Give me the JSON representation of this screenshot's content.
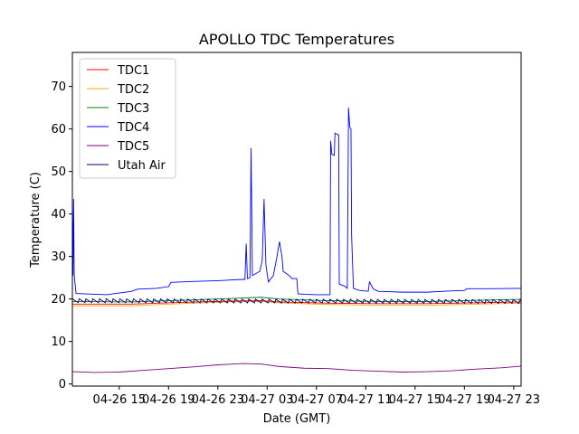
{
  "chart_data": {
    "type": "line",
    "title": "APOLLO TDC Temperatures",
    "xlabel": "Date (GMT)",
    "ylabel": "Temperature (C)",
    "xlim": [
      11.2,
      47.6
    ],
    "ylim": [
      -0.5,
      78
    ],
    "x_unit_note": "hours since 04-26 00:00 GMT",
    "x_ticks": [
      {
        "x": 15,
        "label": "04-26 15"
      },
      {
        "x": 19,
        "label": "04-26 19"
      },
      {
        "x": 23,
        "label": "04-26 23"
      },
      {
        "x": 27,
        "label": "04-27 03"
      },
      {
        "x": 31,
        "label": "04-27 07"
      },
      {
        "x": 35,
        "label": "04-27 11"
      },
      {
        "x": 39,
        "label": "04-27 15"
      },
      {
        "x": 43,
        "label": "04-27 19"
      },
      {
        "x": 47,
        "label": "04-27 23"
      }
    ],
    "y_ticks": [
      0,
      10,
      20,
      30,
      40,
      50,
      60,
      70
    ],
    "legend_position": "top-left",
    "series": [
      {
        "name": "TDC1",
        "color": "#ff0000",
        "points": [
          [
            11.2,
            18.8
          ],
          [
            16,
            18.8
          ],
          [
            20,
            19.2
          ],
          [
            24,
            19.5
          ],
          [
            26.5,
            19.6
          ],
          [
            28,
            19.3
          ],
          [
            32,
            19.0
          ],
          [
            36,
            18.9
          ],
          [
            40,
            18.9
          ],
          [
            44,
            19.1
          ],
          [
            47.6,
            19.3
          ]
        ]
      },
      {
        "name": "TDC2",
        "color": "#ffa500",
        "points": [
          [
            11.2,
            18.4
          ],
          [
            16,
            18.4
          ],
          [
            20,
            18.9
          ],
          [
            24,
            19.3
          ],
          [
            26.5,
            19.4
          ],
          [
            28,
            19.1
          ],
          [
            32,
            18.7
          ],
          [
            36,
            18.5
          ],
          [
            40,
            18.5
          ],
          [
            44,
            18.8
          ],
          [
            47.6,
            19.0
          ]
        ]
      },
      {
        "name": "TDC3",
        "color": "#008000",
        "points": [
          [
            11.2,
            19.4
          ],
          [
            16,
            19.3
          ],
          [
            20,
            19.7
          ],
          [
            24,
            20.1
          ],
          [
            26.5,
            20.4
          ],
          [
            28,
            20.0
          ],
          [
            32,
            19.6
          ],
          [
            36,
            19.4
          ],
          [
            40,
            19.4
          ],
          [
            44,
            19.7
          ],
          [
            47.6,
            19.9
          ]
        ]
      },
      {
        "name": "TDC4",
        "color": "#0000ff",
        "points": [
          [
            11.2,
            43
          ],
          [
            11.25,
            25.5
          ],
          [
            11.3,
            43.5
          ],
          [
            11.35,
            25.5
          ],
          [
            11.5,
            21.3
          ],
          [
            13,
            21.1
          ],
          [
            14,
            21.0
          ],
          [
            15,
            21.4
          ],
          [
            16,
            21.8
          ],
          [
            16.5,
            22.3
          ],
          [
            18,
            22.5
          ],
          [
            19,
            22.9
          ],
          [
            19.2,
            23.9
          ],
          [
            21,
            24.1
          ],
          [
            23,
            24.3
          ],
          [
            25,
            24.6
          ],
          [
            25.2,
            24.6
          ],
          [
            25.3,
            33
          ],
          [
            25.4,
            24.8
          ],
          [
            25.6,
            25
          ],
          [
            25.7,
            55.5
          ],
          [
            25.8,
            25.5
          ],
          [
            26.4,
            26.5
          ],
          [
            26.6,
            29
          ],
          [
            26.75,
            43.5
          ],
          [
            26.9,
            28
          ],
          [
            27.1,
            24
          ],
          [
            27.5,
            25.5
          ],
          [
            27.8,
            30
          ],
          [
            28.0,
            33.5
          ],
          [
            28.2,
            30
          ],
          [
            28.3,
            26.5
          ],
          [
            28.8,
            25.5
          ],
          [
            29.0,
            24.8
          ],
          [
            29.4,
            24.8
          ],
          [
            29.5,
            21.2
          ],
          [
            30,
            21.1
          ],
          [
            31,
            21.0
          ],
          [
            31.5,
            21.0
          ],
          [
            32.1,
            21.0
          ],
          [
            32.15,
            57.2
          ],
          [
            32.25,
            54
          ],
          [
            32.45,
            53.8
          ],
          [
            32.5,
            59
          ],
          [
            32.8,
            58.6
          ],
          [
            32.85,
            23.5
          ],
          [
            33.3,
            23.0
          ],
          [
            33.5,
            22.5
          ],
          [
            33.6,
            65
          ],
          [
            33.7,
            60.5
          ],
          [
            33.8,
            60
          ],
          [
            33.85,
            35
          ],
          [
            34.0,
            22.5
          ],
          [
            34.5,
            22
          ],
          [
            35.2,
            21.8
          ],
          [
            35.3,
            24
          ],
          [
            35.6,
            22.4
          ],
          [
            36,
            21.8
          ],
          [
            38,
            21.6
          ],
          [
            40,
            21.6
          ],
          [
            42,
            21.9
          ],
          [
            43,
            22.0
          ],
          [
            43.2,
            22.4
          ],
          [
            45,
            22.4
          ],
          [
            47.6,
            22.5
          ]
        ]
      },
      {
        "name": "TDC5",
        "color": "#800080",
        "points": [
          [
            11.2,
            2.9
          ],
          [
            13,
            2.7
          ],
          [
            15,
            2.8
          ],
          [
            17,
            3.2
          ],
          [
            19,
            3.6
          ],
          [
            21,
            4.0
          ],
          [
            23,
            4.5
          ],
          [
            25,
            4.8
          ],
          [
            26.5,
            4.7
          ],
          [
            28,
            4.1
          ],
          [
            30,
            3.7
          ],
          [
            32,
            3.6
          ],
          [
            34,
            3.2
          ],
          [
            36,
            3.0
          ],
          [
            38,
            2.8
          ],
          [
            40,
            2.9
          ],
          [
            42,
            3.1
          ],
          [
            44,
            3.5
          ],
          [
            46,
            3.8
          ],
          [
            47.6,
            4.2
          ]
        ]
      },
      {
        "name": "Utah Air",
        "color": "#000080",
        "points": [
          [
            11.2,
            19.5
          ],
          [
            47.6,
            19.3
          ]
        ],
        "sawtooth": {
          "step_hours": 0.55,
          "amplitude": 0.9
        }
      }
    ]
  }
}
